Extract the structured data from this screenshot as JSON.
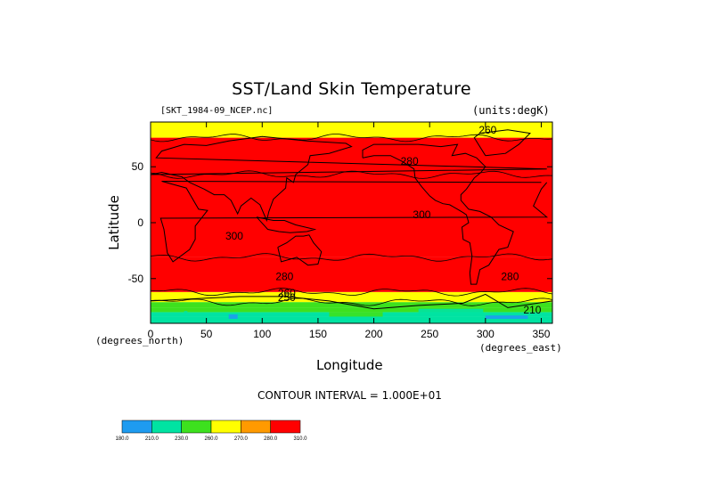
{
  "chart_data": {
    "type": "heatmap",
    "title": "SST/Land Skin Temperature",
    "file_label": "[SKT_1984-09_NCEP.nc]",
    "units_label": "(units:degK)",
    "xlabel": "Longitude",
    "ylabel": "Latitude",
    "x_unit_label": "(degrees_east)",
    "y_unit_label": "(degrees_north)",
    "xlim": [
      0,
      360
    ],
    "ylim": [
      -90,
      90
    ],
    "x_ticks": [
      0,
      50,
      100,
      150,
      200,
      250,
      300,
      350
    ],
    "y_ticks": [
      -50,
      0,
      50
    ],
    "contour_interval_text": "CONTOUR INTERVAL = 1.000E+01",
    "contour_labels": [
      {
        "text": "260",
        "x": 302,
        "y": 83
      },
      {
        "text": "280",
        "x": 232,
        "y": 55
      },
      {
        "text": "300",
        "x": 243,
        "y": 7
      },
      {
        "text": "300",
        "x": 75,
        "y": -12
      },
      {
        "text": "280",
        "x": 120,
        "y": -48
      },
      {
        "text": "280",
        "x": 322,
        "y": -48
      },
      {
        "text": "260",
        "x": 122,
        "y": -63
      },
      {
        "text": "250",
        "x": 122,
        "y": -67
      },
      {
        "text": "210",
        "x": 342,
        "y": -78
      }
    ],
    "zonal_bands": [
      {
        "lat": [
          -90,
          -84
        ],
        "value": 215
      },
      {
        "lat": [
          -84,
          -80
        ],
        "value": 225
      },
      {
        "lat": [
          -80,
          -76
        ],
        "value": 235
      },
      {
        "lat": [
          -76,
          -71
        ],
        "value": 255
      },
      {
        "lat": [
          -71,
          -62
        ],
        "value": 265
      },
      {
        "lat": [
          -62,
          -31
        ],
        "value": 285
      },
      {
        "lat": [
          -31,
          43
        ],
        "value": 305
      },
      {
        "lat": [
          43,
          76
        ],
        "value": 285
      },
      {
        "lat": [
          76,
          90
        ],
        "value": 265
      }
    ],
    "colorbar": {
      "ticks": [
        "180.0",
        "210.0",
        "230.0",
        "260.0",
        "270.0",
        "280.0",
        "310.0"
      ],
      "bins": [
        {
          "from": 180,
          "to": 210,
          "color": "#1e9bf0"
        },
        {
          "from": 210,
          "to": 230,
          "color": "#00e3a2"
        },
        {
          "from": 230,
          "to": 260,
          "color": "#3de11e"
        },
        {
          "from": 260,
          "to": 270,
          "color": "#ffff00"
        },
        {
          "from": 270,
          "to": 280,
          "color": "#ff9a00"
        },
        {
          "from": 280,
          "to": 310,
          "color": "#ff0000"
        }
      ]
    }
  }
}
